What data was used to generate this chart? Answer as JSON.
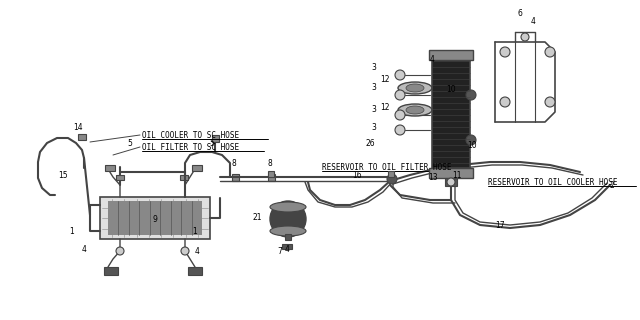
{
  "bg_color": "#ffffff",
  "line_color": "#444444",
  "dark_color": "#111111",
  "gray1": "#888888",
  "gray2": "#555555",
  "gray3": "#cccccc",
  "figsize": [
    6.4,
    3.2
  ],
  "dpi": 100,
  "labels": {
    "oil_cooler_sc": "OIL COOLER TO SC HOSE",
    "oil_filter_sc": "OIL FILTER TO SC HOSE",
    "reservoir_filter": "RESERVOIR TO OIL FILTER HOSE",
    "reservoir_cooler": "RESERVOIR TO OIL COOLER HOSE"
  }
}
